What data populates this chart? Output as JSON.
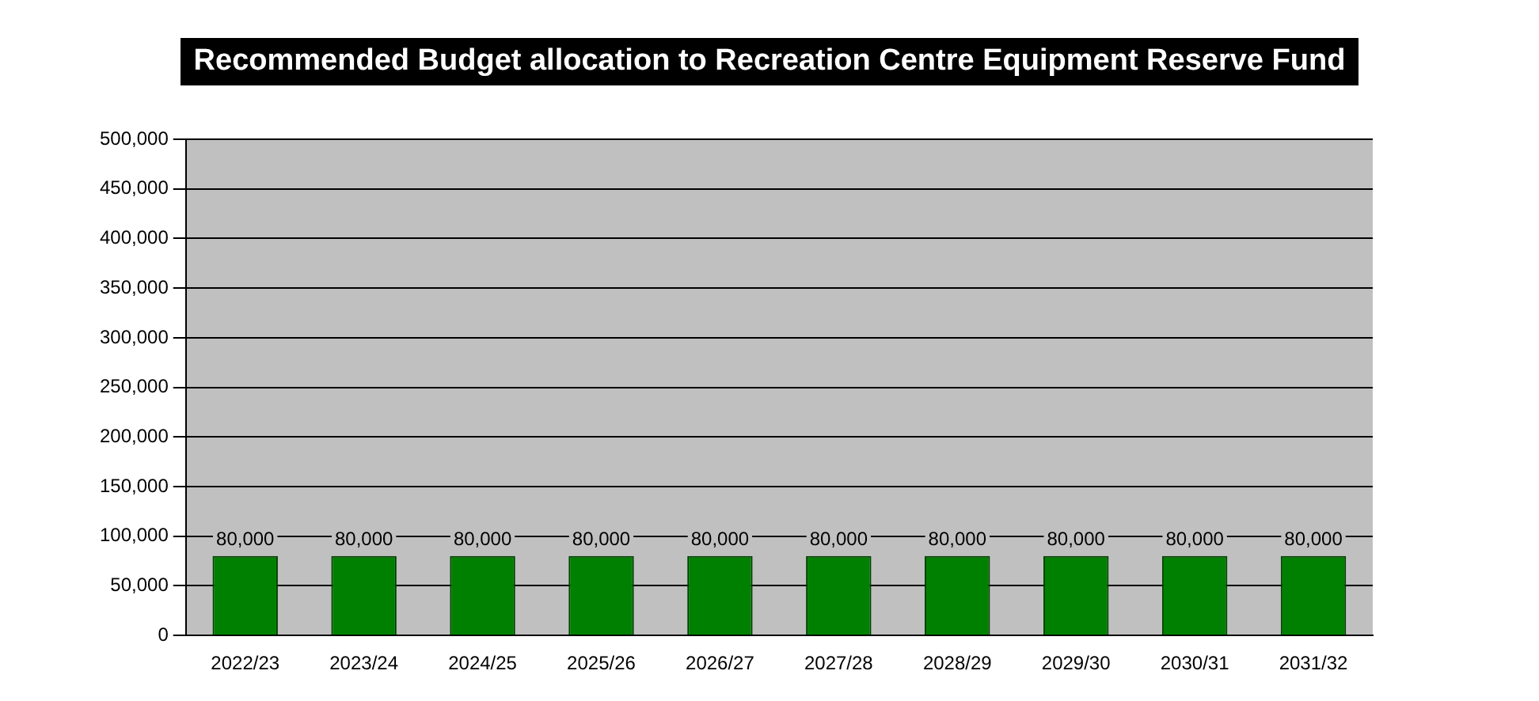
{
  "chart_data": {
    "type": "bar",
    "title": "Recommended Budget allocation to Recreation Centre Equipment Reserve Fund",
    "categories": [
      "2022/23",
      "2023/24",
      "2024/25",
      "2025/26",
      "2026/27",
      "2027/28",
      "2028/29",
      "2029/30",
      "2030/31",
      "2031/32"
    ],
    "values": [
      80000,
      80000,
      80000,
      80000,
      80000,
      80000,
      80000,
      80000,
      80000,
      80000
    ],
    "value_labels": [
      "80,000",
      "80,000",
      "80,000",
      "80,000",
      "80,000",
      "80,000",
      "80,000",
      "80,000",
      "80,000",
      "80,000"
    ],
    "color": "#008000",
    "ylim": [
      0,
      500000
    ],
    "yticks": [
      0,
      {
        "value": 50000,
        "label": "50,000"
      },
      {
        "value": 100000,
        "label": "100,000"
      },
      {
        "value": 150000,
        "label": "150,000"
      },
      {
        "value": 200000,
        "label": "200,000"
      },
      {
        "value": 250000,
        "label": "250,000"
      },
      {
        "value": 300000,
        "label": "300,000"
      },
      {
        "value": 350000,
        "label": "350,000"
      },
      {
        "value": 400000,
        "label": "400,000"
      },
      {
        "value": 450000,
        "label": "450,000"
      },
      {
        "value": 500000,
        "label": "500,000"
      }
    ],
    "grid": "y"
  }
}
